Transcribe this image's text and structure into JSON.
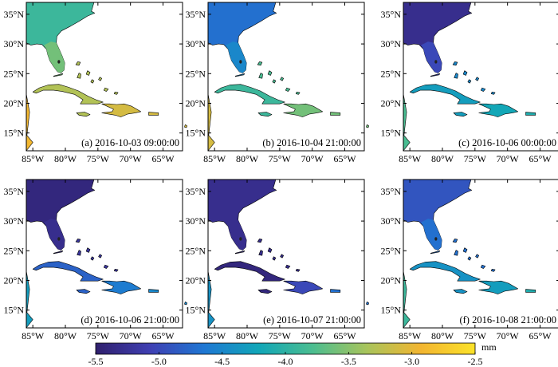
{
  "chart_data": {
    "type": "map",
    "units": "mm",
    "colorbar": {
      "min": -5.5,
      "max": -2.5,
      "ticks": [
        "-5.5",
        "-5.0",
        "-4.5",
        "-4.0",
        "-3.5",
        "-3.0",
        "-2.5"
      ],
      "unit_label": "mm",
      "colormap": [
        "#30206d",
        "#3f3fb2",
        "#1f77d3",
        "#11a6b8",
        "#4bbd90",
        "#a8c45c",
        "#f2b531",
        "#fbe22a"
      ]
    },
    "x_ticks": [
      "85°W",
      "80°W",
      "75°W",
      "70°W",
      "65°W"
    ],
    "y_ticks": [
      "15°N",
      "20°N",
      "25°N",
      "30°N",
      "35°N"
    ],
    "panels": [
      {
        "label": "(a) 2016-10-03 09:00:00",
        "mainland": -3.9,
        "florida": -3.6,
        "cuba": -3.3,
        "hispaniola": -3.1,
        "puertorico": -3.1,
        "yucatan": -2.9,
        "bahamas": -3.3
      },
      {
        "label": "(b) 2016-10-04 21:00:00",
        "mainland": -4.7,
        "florida": -4.5,
        "cuba": -3.9,
        "hispaniola": -3.6,
        "puertorico": -3.6,
        "yucatan": -3.1,
        "bahamas": -3.8
      },
      {
        "label": "(c) 2016-10-06 00:00:00",
        "mainland": -5.3,
        "florida": -5.0,
        "cuba": -4.3,
        "hispaniola": -4.2,
        "puertorico": -4.1,
        "yucatan": -3.8,
        "bahamas": -4.5
      },
      {
        "label": "(d) 2016-10-06 21:00:00",
        "mainland": -5.4,
        "florida": -5.3,
        "cuba": -4.8,
        "hispaniola": -4.6,
        "puertorico": -4.5,
        "yucatan": -4.3,
        "bahamas": -5.2
      },
      {
        "label": "(e) 2016-10-07 21:00:00",
        "mainland": -5.3,
        "florida": -5.3,
        "cuba": -5.4,
        "hispaniola": -5.0,
        "puertorico": -4.7,
        "yucatan": -4.4,
        "bahamas": -5.3
      },
      {
        "label": "(f) 2016-10-08 21:00:00",
        "mainland": -4.9,
        "florida": -4.7,
        "cuba": -4.4,
        "hispaniola": -4.3,
        "puertorico": -4.1,
        "yucatan": -3.9,
        "bahamas": -4.7
      }
    ]
  }
}
